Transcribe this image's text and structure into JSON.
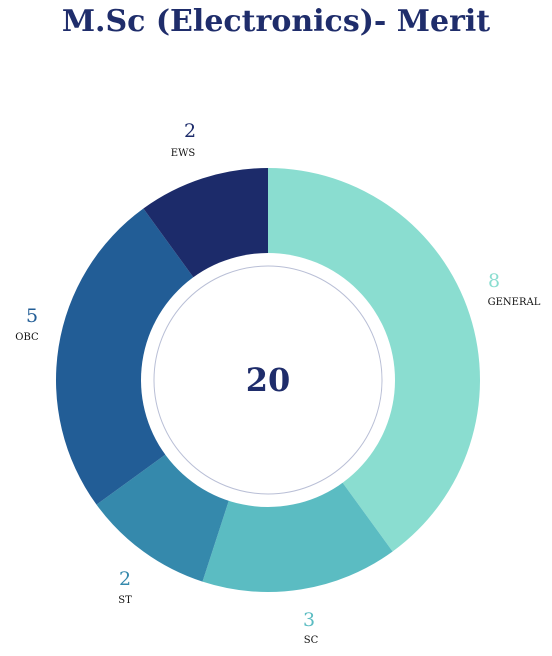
{
  "chart_data": {
    "type": "pie",
    "title": "M.Sc (Electronics)- Merit",
    "total_label": "20",
    "categories": [
      "GENERAL",
      "SC",
      "ST",
      "OBC",
      "EWS"
    ],
    "values": [
      8,
      3,
      2,
      5,
      2
    ],
    "colors": [
      "#8addd0",
      "#5bbcc2",
      "#3589ac",
      "#225d96",
      "#1c2b6a"
    ],
    "value_label_colors": [
      "#8addd0",
      "#5bbcc2",
      "#3589ac",
      "#225d96",
      "#1c2b6a"
    ],
    "legend": "none"
  }
}
